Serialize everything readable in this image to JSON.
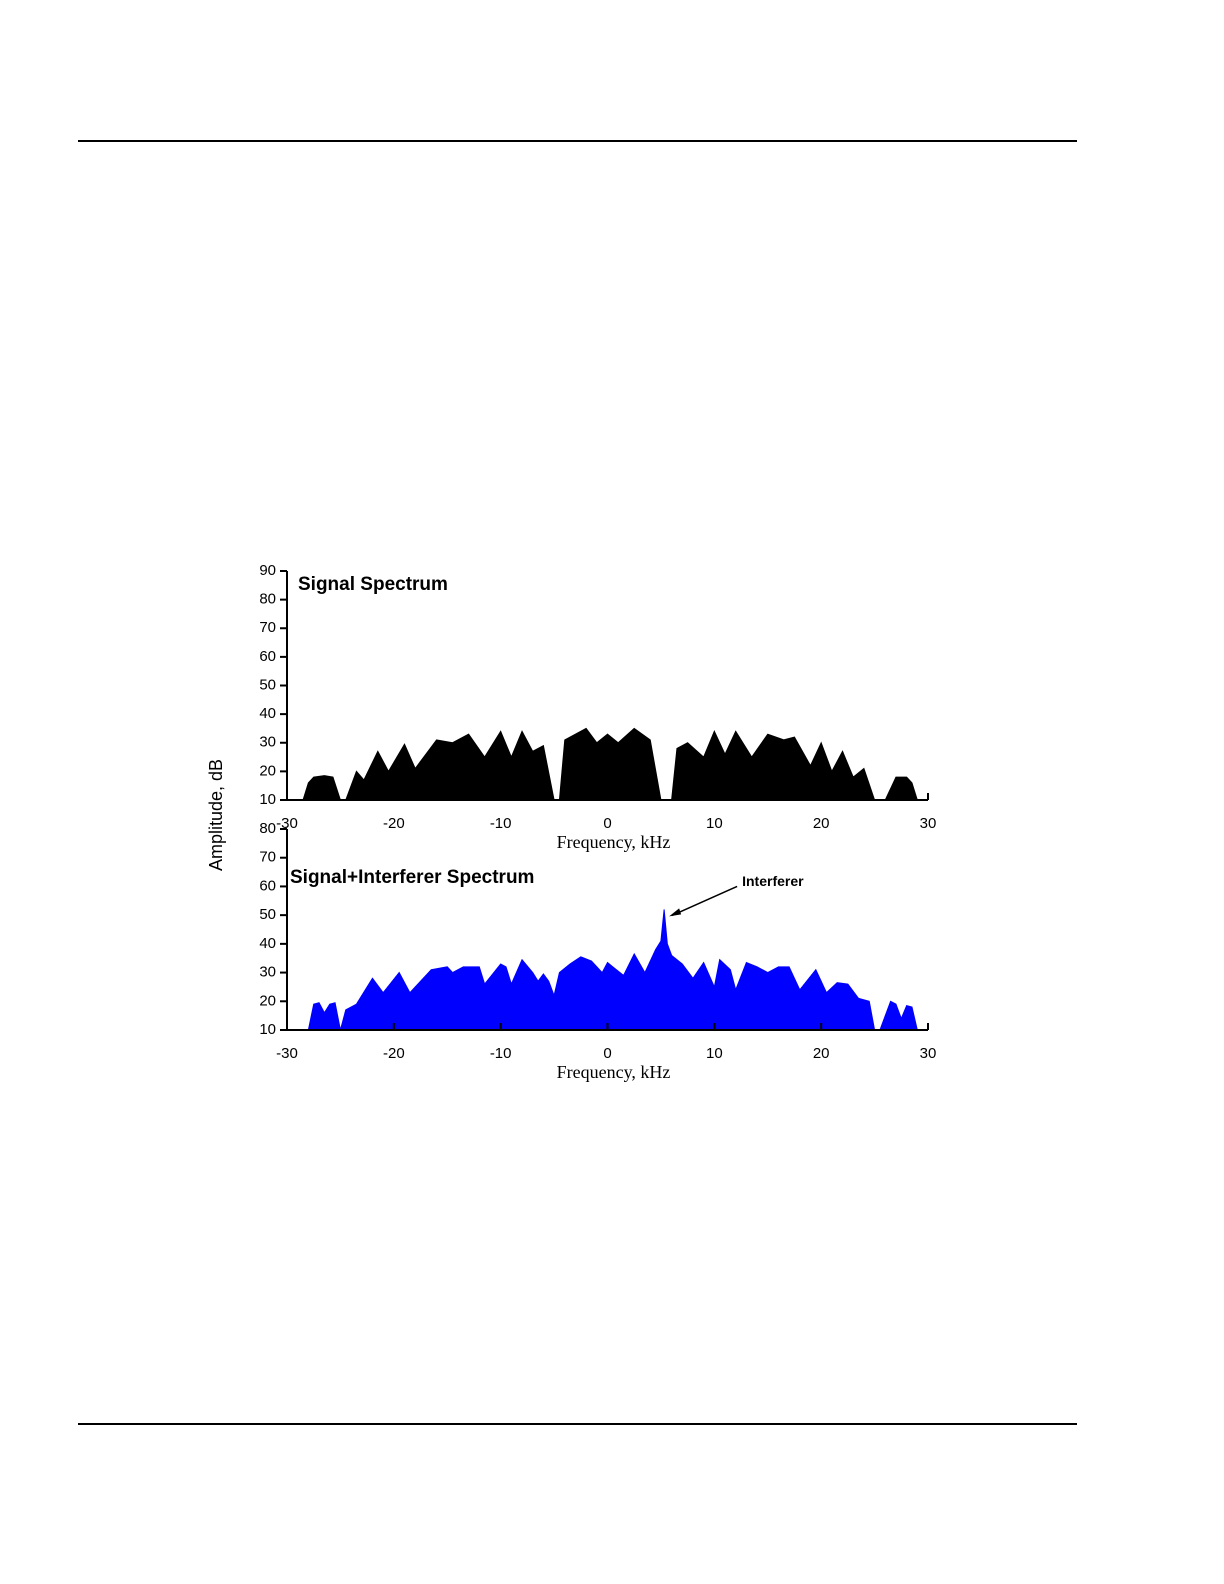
{
  "chart_data": [
    {
      "type": "area",
      "title": "Signal Spectrum",
      "xlabel": "Frequency, kHz",
      "ylabel": "Amplitude, dB",
      "color": "#000000",
      "x": [
        -28.5,
        -28,
        -27.5,
        -26.5,
        -25.7,
        -25,
        -24.5,
        -23.5,
        -22.8,
        -21.5,
        -20.5,
        -19,
        -18,
        -16,
        -14.5,
        -13,
        -11.5,
        -10,
        -9,
        -8,
        -7,
        -6,
        -5,
        -4.5,
        -4,
        -2,
        -1,
        0,
        1,
        2.5,
        4,
        5,
        6,
        6.5,
        7.5,
        9,
        10,
        11,
        12,
        13.5,
        15,
        16.5,
        17.5,
        19,
        20,
        21,
        22,
        23,
        24,
        25,
        26,
        27,
        28,
        28.5,
        29
      ],
      "values": [
        10,
        16,
        18,
        18.5,
        18,
        10,
        10,
        20,
        17,
        27,
        20,
        29.5,
        21,
        31,
        30,
        33,
        25,
        34,
        25,
        34,
        27,
        29,
        10,
        10,
        31,
        35,
        30,
        33,
        30,
        35,
        31,
        10,
        10,
        28,
        30,
        25,
        34,
        26,
        34,
        25,
        33,
        31,
        32,
        22,
        30,
        20,
        27,
        18,
        21,
        10,
        10,
        18,
        18,
        16,
        10
      ],
      "xlim": [
        -30,
        30
      ],
      "xticks": [
        -30,
        -20,
        -10,
        0,
        10,
        20,
        30
      ],
      "ylim": [
        10,
        90
      ],
      "yticks": [
        10,
        20,
        30,
        40,
        50,
        60,
        70,
        80,
        90
      ]
    },
    {
      "type": "area",
      "title": "Signal+Interferer Spectrum",
      "xlabel": "Frequency, kHz",
      "color": "#0000ff",
      "x": [
        -28,
        -27.5,
        -27,
        -26.5,
        -26,
        -25.5,
        -25,
        -24.5,
        -23.5,
        -22,
        -21,
        -19.5,
        -18.5,
        -16.5,
        -15,
        -14.5,
        -13.5,
        -12,
        -11.5,
        -10,
        -9.5,
        -9,
        -8,
        -7,
        -6.5,
        -6,
        -5.5,
        -5,
        -4.5,
        -3.5,
        -2.5,
        -1.5,
        -0.5,
        0,
        0.5,
        1.5,
        2.5,
        3.5,
        4.5,
        5,
        5.3,
        5.6,
        6,
        7,
        8,
        9,
        10,
        10.5,
        11.5,
        12,
        13,
        14,
        15,
        16,
        17,
        18,
        19.5,
        20.5,
        21.5,
        22.5,
        23.5,
        24.5,
        25,
        25.5,
        26.5,
        27,
        27.5,
        28,
        28.5,
        29
      ],
      "values": [
        10,
        19,
        19.5,
        16,
        19,
        19.5,
        10,
        17,
        19,
        28,
        23,
        30,
        23,
        31,
        32,
        30,
        32,
        32,
        26,
        33,
        32,
        26,
        34.5,
        30,
        27,
        29.5,
        27,
        22,
        30,
        33,
        35.5,
        34,
        30,
        33.5,
        32,
        29,
        36.5,
        30,
        38,
        41,
        52,
        40,
        36,
        33,
        28,
        33.5,
        25,
        34.5,
        31,
        24,
        33.5,
        32,
        30,
        32,
        32,
        24,
        31,
        23,
        26.5,
        26,
        21,
        20,
        10,
        10,
        20,
        19,
        14,
        18.5,
        18,
        10
      ],
      "annotations": [
        {
          "text": "Interferer",
          "x": 5.3,
          "y": 52
        }
      ],
      "xlim": [
        -30,
        30
      ],
      "xticks": [
        -30,
        -20,
        -10,
        0,
        10,
        20,
        30
      ],
      "ylim": [
        10,
        80
      ],
      "yticks": [
        10,
        20,
        30,
        40,
        50,
        60,
        70,
        80
      ]
    }
  ]
}
